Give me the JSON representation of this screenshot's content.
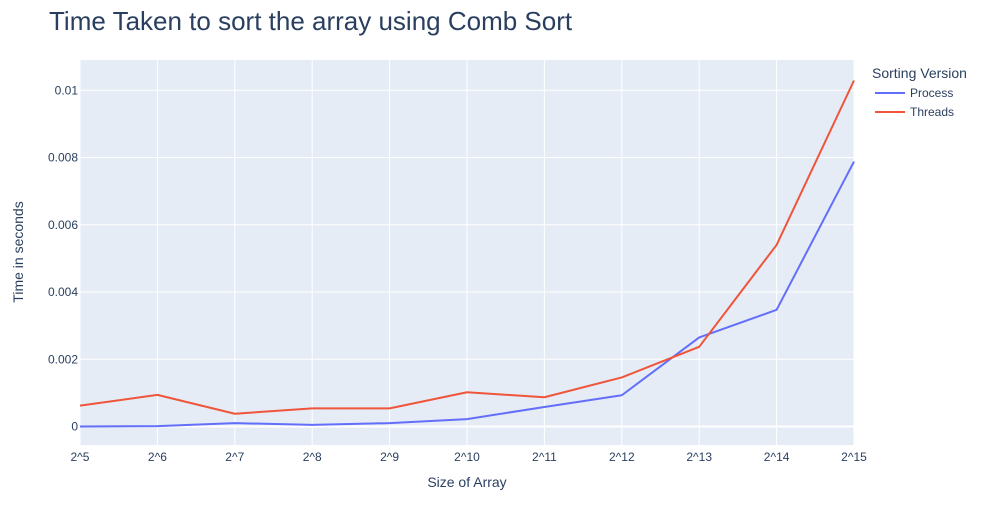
{
  "chart_data": {
    "type": "line",
    "title": "Time Taken to sort the array using Comb Sort",
    "xlabel": "Size of Array",
    "ylabel": "Time in seconds",
    "categories": [
      "2^5",
      "2^6",
      "2^7",
      "2^8",
      "2^9",
      "2^10",
      "2^11",
      "2^12",
      "2^13",
      "2^14",
      "2^15"
    ],
    "yticks": [
      0,
      0.002,
      0.004,
      0.006,
      0.008,
      0.01
    ],
    "ytick_labels": [
      "0",
      "0.002",
      "0.004",
      "0.006",
      "0.008",
      "0.01"
    ],
    "ylim": [
      -0.00055,
      0.0109
    ],
    "grid": true,
    "legend": {
      "title": "Sorting Version",
      "placement": "top-right, outside plot"
    },
    "series": [
      {
        "name": "Process",
        "color": "#636efa",
        "values": [
          0.0,
          1e-05,
          0.0001,
          5e-05,
          0.0001,
          0.00022,
          0.00058,
          0.00093,
          0.00265,
          0.00347,
          0.00788
        ]
      },
      {
        "name": "Threads",
        "color": "#ef553b",
        "values": [
          0.00062,
          0.00094,
          0.00038,
          0.00054,
          0.00054,
          0.00102,
          0.00087,
          0.00146,
          0.00237,
          0.0054,
          0.01029
        ]
      }
    ]
  }
}
